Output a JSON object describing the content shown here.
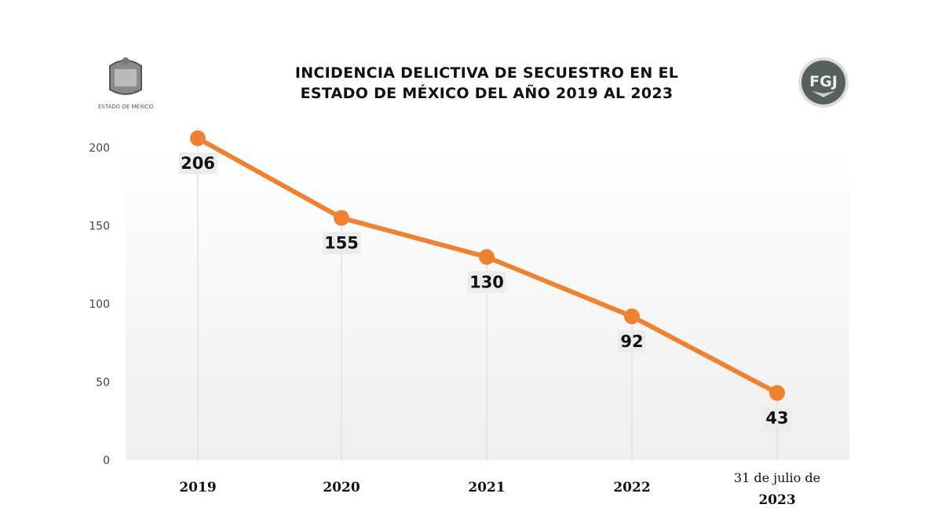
{
  "logos": {
    "left_caption": "ESTADO DE MÉXICO",
    "right_text": "FGJ"
  },
  "chart_data": {
    "type": "line",
    "title": "INCIDENCIA DELICTIVA DE SECUESTRO EN EL ESTADO DE MÉXICO DEL AÑO 2019 AL 2023",
    "title_lines": [
      "INCIDENCIA DELICTIVA DE SECUESTRO EN EL",
      "ESTADO DE MÉXICO DEL AÑO 2019 AL 2023"
    ],
    "categories": [
      {
        "line1": "",
        "line2": "2019"
      },
      {
        "line1": "",
        "line2": "2020"
      },
      {
        "line1": "",
        "line2": "2021"
      },
      {
        "line1": "",
        "line2": "2022"
      },
      {
        "line1": "31 de julio de",
        "line2": "2023"
      }
    ],
    "values": [
      206,
      155,
      130,
      92,
      43
    ],
    "data_labels": [
      "206",
      "155",
      "130",
      "92",
      "43"
    ],
    "ylim": [
      0,
      200
    ],
    "yticks": [
      "0",
      "50",
      "100",
      "150",
      "200"
    ],
    "xlabel": "",
    "ylabel": "",
    "grid": false,
    "color": "#ee8232"
  }
}
